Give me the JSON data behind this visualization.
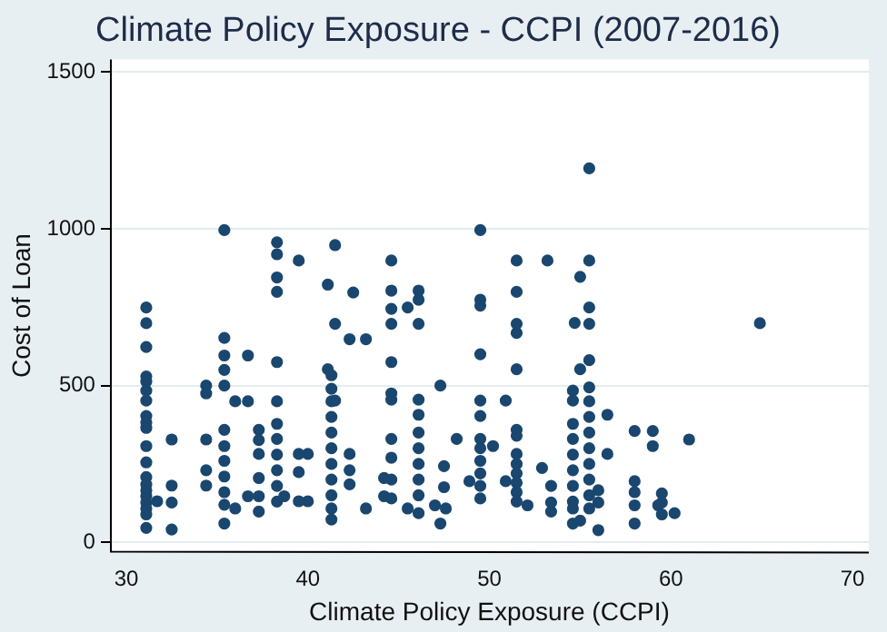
{
  "chart_data": {
    "type": "scatter",
    "title": "Climate Policy Exposure - CCPI (2007-2016)",
    "xlabel": "Climate Policy Exposure (CCPI)",
    "ylabel": "Cost of Loan",
    "xlim": [
      29.1,
      70.9
    ],
    "ylim": [
      -30,
      1540
    ],
    "xticks": [
      30,
      40,
      50,
      60,
      70
    ],
    "yticks": [
      0,
      500,
      1000,
      1500
    ],
    "grid": "y",
    "legend": false,
    "marker": "circle",
    "series": [
      {
        "color": "#1a476f",
        "x": [
          31.1,
          31.1,
          31.1,
          31.1,
          31.1,
          31.1,
          31.1,
          31.1,
          31.1,
          31.1,
          31.1,
          31.1,
          31.1,
          31.1,
          31.1,
          31.1,
          31.1,
          31.1,
          31.1,
          31.1,
          31.7,
          32.5,
          32.5,
          32.5,
          32.5,
          34.4,
          34.4,
          34.4,
          34.4,
          34.4,
          35.4,
          35.4,
          35.4,
          35.4,
          35.4,
          35.4,
          35.4,
          35.4,
          35.4,
          35.4,
          35.4,
          35.4,
          36.0,
          36.0,
          36.7,
          36.7,
          36.7,
          37.3,
          37.3,
          37.3,
          37.3,
          37.3,
          37.3,
          38.3,
          38.3,
          38.3,
          38.3,
          38.3,
          38.3,
          38.3,
          38.3,
          38.3,
          38.3,
          38.3,
          38.3,
          38.7,
          39.5,
          39.5,
          39.5,
          39.5,
          40.0,
          40.0,
          41.1,
          41.1,
          41.3,
          41.3,
          41.3,
          41.3,
          41.3,
          41.3,
          41.3,
          41.3,
          41.3,
          41.3,
          41.3,
          41.5,
          41.5,
          41.5,
          42.5,
          42.3,
          42.3,
          42.3,
          42.3,
          43.2,
          43.2,
          44.2,
          44.2,
          44.6,
          44.6,
          44.6,
          44.6,
          44.6,
          44.6,
          44.6,
          44.6,
          44.6,
          44.6,
          44.6,
          45.5,
          45.5,
          46.1,
          46.1,
          46.1,
          46.1,
          46.1,
          46.1,
          46.1,
          46.1,
          46.1,
          46.1,
          46.1,
          47.0,
          47.5,
          47.5,
          47.3,
          47.3,
          47.6,
          48.2,
          48.9,
          49.5,
          49.5,
          49.5,
          49.5,
          49.5,
          49.5,
          49.5,
          49.5,
          49.5,
          49.5,
          49.5,
          49.5,
          50.2,
          50.9,
          50.9,
          51.5,
          51.5,
          51.5,
          51.5,
          51.5,
          51.5,
          51.5,
          51.5,
          51.5,
          51.5,
          51.5,
          51.5,
          51.5,
          52.1,
          52.9,
          53.2,
          53.4,
          53.4,
          53.4,
          54.6,
          54.6,
          54.6,
          54.6,
          54.6,
          54.6,
          54.6,
          54.6,
          54.6,
          54.6,
          54.7,
          55.0,
          55.0,
          55.0,
          55.5,
          55.5,
          55.5,
          55.5,
          55.5,
          55.5,
          55.5,
          55.5,
          55.5,
          55.5,
          55.5,
          55.5,
          55.5,
          55.5,
          56.0,
          56.0,
          56.0,
          56.5,
          56.5,
          58.0,
          58.0,
          58.0,
          58.0,
          58.0,
          59.0,
          59.0,
          59.3,
          59.5,
          59.5,
          59.5,
          60.2,
          61.0,
          64.9
        ],
        "values": [
          749,
          699,
          623,
          529,
          513,
          484,
          452,
          403,
          382,
          365,
          307,
          255,
          208,
          185,
          166,
          147,
          127,
          108,
          89,
          46,
          131,
          328,
          181,
          127,
          41,
          500,
          475,
          328,
          230,
          181,
          996,
          652,
          596,
          550,
          500,
          359,
          307,
          260,
          210,
          160,
          120,
          60,
          450,
          108,
          596,
          450,
          147,
          359,
          326,
          282,
          205,
          147,
          98,
          957,
          919,
          845,
          799,
          575,
          450,
          378,
          330,
          280,
          230,
          180,
          130,
          147,
          899,
          282,
          224,
          131,
          282,
          131,
          822,
          552,
          533,
          490,
          450,
          400,
          350,
          300,
          250,
          200,
          150,
          108,
          73,
          948,
          697,
          452,
          797,
          648,
          282,
          230,
          185,
          648,
          108,
          205,
          147,
          899,
          803,
          745,
          697,
          575,
          475,
          455,
          330,
          270,
          200,
          140,
          749,
          108,
          803,
          774,
          697,
          455,
          407,
          350,
          300,
          250,
          200,
          150,
          93,
          118,
          243,
          176,
          500,
          60,
          108,
          330,
          195,
          996,
          774,
          755,
          600,
          452,
          403,
          330,
          300,
          260,
          220,
          180,
          140,
          307,
          452,
          195,
          899,
          799,
          697,
          668,
          552,
          359,
          340,
          282,
          250,
          220,
          190,
          160,
          130,
          118,
          237,
          899,
          180,
          127,
          98,
          484,
          452,
          378,
          330,
          280,
          230,
          180,
          130,
          108,
          60,
          700,
          847,
          552,
          69,
          1193,
          899,
          749,
          697,
          581,
          494,
          450,
          400,
          350,
          300,
          250,
          200,
          150,
          108,
          166,
          127,
          39,
          407,
          282,
          355,
          195,
          160,
          118,
          60,
          355,
          307,
          118,
          156,
          127,
          89,
          93,
          328,
          699
        ]
      }
    ]
  }
}
